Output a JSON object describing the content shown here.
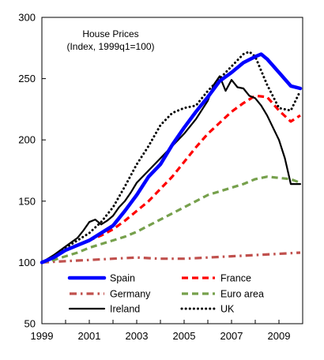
{
  "chart_data": {
    "type": "line",
    "title": "House Prices",
    "subtitle": "(Index, 1999q1=100)",
    "xlim": [
      1999.0,
      2010.0
    ],
    "ylim": [
      50,
      300
    ],
    "xticks": [
      1999,
      2001,
      2003,
      2005,
      2007,
      2009
    ],
    "xtick_labels": [
      "1999",
      "2001",
      "2003",
      "2005",
      "2007",
      "2009"
    ],
    "yticks": [
      50,
      100,
      150,
      200,
      250,
      300
    ],
    "ytick_labels": [
      "50",
      "100",
      "150",
      "200",
      "250",
      "300"
    ],
    "grid": false,
    "legend_position": "bottom",
    "series": [
      {
        "name": "Spain",
        "color": "#0000ff",
        "style": "solid-thick",
        "points": [
          [
            1999.0,
            100
          ],
          [
            1999.5,
            104
          ],
          [
            2000.0,
            110
          ],
          [
            2000.5,
            114
          ],
          [
            2001.0,
            118
          ],
          [
            2001.5,
            124
          ],
          [
            2002.0,
            130
          ],
          [
            2002.5,
            142
          ],
          [
            2003.0,
            155
          ],
          [
            2003.5,
            170
          ],
          [
            2004.0,
            180
          ],
          [
            2004.5,
            196
          ],
          [
            2005.0,
            210
          ],
          [
            2005.5,
            223
          ],
          [
            2006.0,
            235
          ],
          [
            2006.5,
            248
          ],
          [
            2007.0,
            255
          ],
          [
            2007.5,
            263
          ],
          [
            2008.0,
            268
          ],
          [
            2008.25,
            270
          ],
          [
            2008.5,
            266
          ],
          [
            2009.0,
            255
          ],
          [
            2009.5,
            244
          ],
          [
            2009.9,
            242
          ]
        ]
      },
      {
        "name": "France",
        "color": "#ff0000",
        "style": "dashed",
        "points": [
          [
            1999.0,
            100
          ],
          [
            1999.5,
            104
          ],
          [
            2000.0,
            110
          ],
          [
            2000.5,
            114
          ],
          [
            2001.0,
            118
          ],
          [
            2001.5,
            122
          ],
          [
            2002.0,
            127
          ],
          [
            2002.5,
            134
          ],
          [
            2003.0,
            142
          ],
          [
            2003.5,
            150
          ],
          [
            2004.0,
            160
          ],
          [
            2004.5,
            170
          ],
          [
            2005.0,
            182
          ],
          [
            2005.5,
            194
          ],
          [
            2006.0,
            205
          ],
          [
            2006.5,
            214
          ],
          [
            2007.0,
            223
          ],
          [
            2007.5,
            230
          ],
          [
            2008.0,
            236
          ],
          [
            2008.5,
            235
          ],
          [
            2009.0,
            224
          ],
          [
            2009.5,
            215
          ],
          [
            2009.9,
            220
          ]
        ]
      },
      {
        "name": "Germany",
        "color": "#c0504d",
        "style": "dash-dot",
        "points": [
          [
            1999.0,
            100
          ],
          [
            2000.0,
            101
          ],
          [
            2001.0,
            102
          ],
          [
            2002.0,
            103
          ],
          [
            2003.0,
            104
          ],
          [
            2004.0,
            103
          ],
          [
            2005.0,
            103
          ],
          [
            2006.0,
            104
          ],
          [
            2007.0,
            105
          ],
          [
            2008.0,
            106
          ],
          [
            2009.0,
            107
          ],
          [
            2009.9,
            108
          ]
        ]
      },
      {
        "name": "Euro area",
        "color": "#76a04c",
        "style": "dashed",
        "points": [
          [
            1999.0,
            100
          ],
          [
            1999.5,
            102
          ],
          [
            2000.0,
            105
          ],
          [
            2000.5,
            108
          ],
          [
            2001.0,
            112
          ],
          [
            2001.5,
            115
          ],
          [
            2002.0,
            118
          ],
          [
            2002.5,
            121
          ],
          [
            2003.0,
            125
          ],
          [
            2003.5,
            130
          ],
          [
            2004.0,
            135
          ],
          [
            2004.5,
            140
          ],
          [
            2005.0,
            145
          ],
          [
            2005.5,
            150
          ],
          [
            2006.0,
            155
          ],
          [
            2006.5,
            158
          ],
          [
            2007.0,
            161
          ],
          [
            2007.5,
            164
          ],
          [
            2008.0,
            168
          ],
          [
            2008.5,
            170
          ],
          [
            2009.0,
            169
          ],
          [
            2009.5,
            168
          ],
          [
            2009.9,
            165
          ]
        ]
      },
      {
        "name": "Ireland",
        "color": "#000000",
        "style": "solid",
        "points": [
          [
            1999.0,
            100
          ],
          [
            1999.5,
            106
          ],
          [
            2000.0,
            113
          ],
          [
            2000.5,
            120
          ],
          [
            2000.75,
            126
          ],
          [
            2001.0,
            133
          ],
          [
            2001.25,
            135
          ],
          [
            2001.5,
            131
          ],
          [
            2001.75,
            134
          ],
          [
            2002.0,
            138
          ],
          [
            2002.25,
            145
          ],
          [
            2002.5,
            150
          ],
          [
            2002.75,
            157
          ],
          [
            2003.0,
            165
          ],
          [
            2003.5,
            175
          ],
          [
            2004.0,
            185
          ],
          [
            2004.5,
            195
          ],
          [
            2005.0,
            205
          ],
          [
            2005.5,
            217
          ],
          [
            2006.0,
            232
          ],
          [
            2006.25,
            245
          ],
          [
            2006.5,
            252
          ],
          [
            2006.75,
            240
          ],
          [
            2007.0,
            249
          ],
          [
            2007.25,
            243
          ],
          [
            2007.5,
            242
          ],
          [
            2007.75,
            236
          ],
          [
            2008.0,
            234
          ],
          [
            2008.25,
            228
          ],
          [
            2008.5,
            220
          ],
          [
            2008.75,
            210
          ],
          [
            2009.0,
            200
          ],
          [
            2009.25,
            185
          ],
          [
            2009.5,
            164
          ],
          [
            2009.9,
            164
          ]
        ]
      },
      {
        "name": "UK",
        "color": "#000000",
        "style": "dotted",
        "points": [
          [
            1999.0,
            100
          ],
          [
            1999.5,
            104
          ],
          [
            2000.0,
            112
          ],
          [
            2000.5,
            118
          ],
          [
            2001.0,
            124
          ],
          [
            2001.5,
            133
          ],
          [
            2002.0,
            145
          ],
          [
            2002.5,
            162
          ],
          [
            2003.0,
            180
          ],
          [
            2003.5,
            195
          ],
          [
            2004.0,
            212
          ],
          [
            2004.5,
            222
          ],
          [
            2005.0,
            226
          ],
          [
            2005.5,
            228
          ],
          [
            2006.0,
            240
          ],
          [
            2006.5,
            250
          ],
          [
            2007.0,
            260
          ],
          [
            2007.5,
            270
          ],
          [
            2007.75,
            272
          ],
          [
            2008.0,
            268
          ],
          [
            2008.5,
            245
          ],
          [
            2009.0,
            226
          ],
          [
            2009.5,
            224
          ],
          [
            2009.9,
            240
          ]
        ]
      }
    ]
  }
}
